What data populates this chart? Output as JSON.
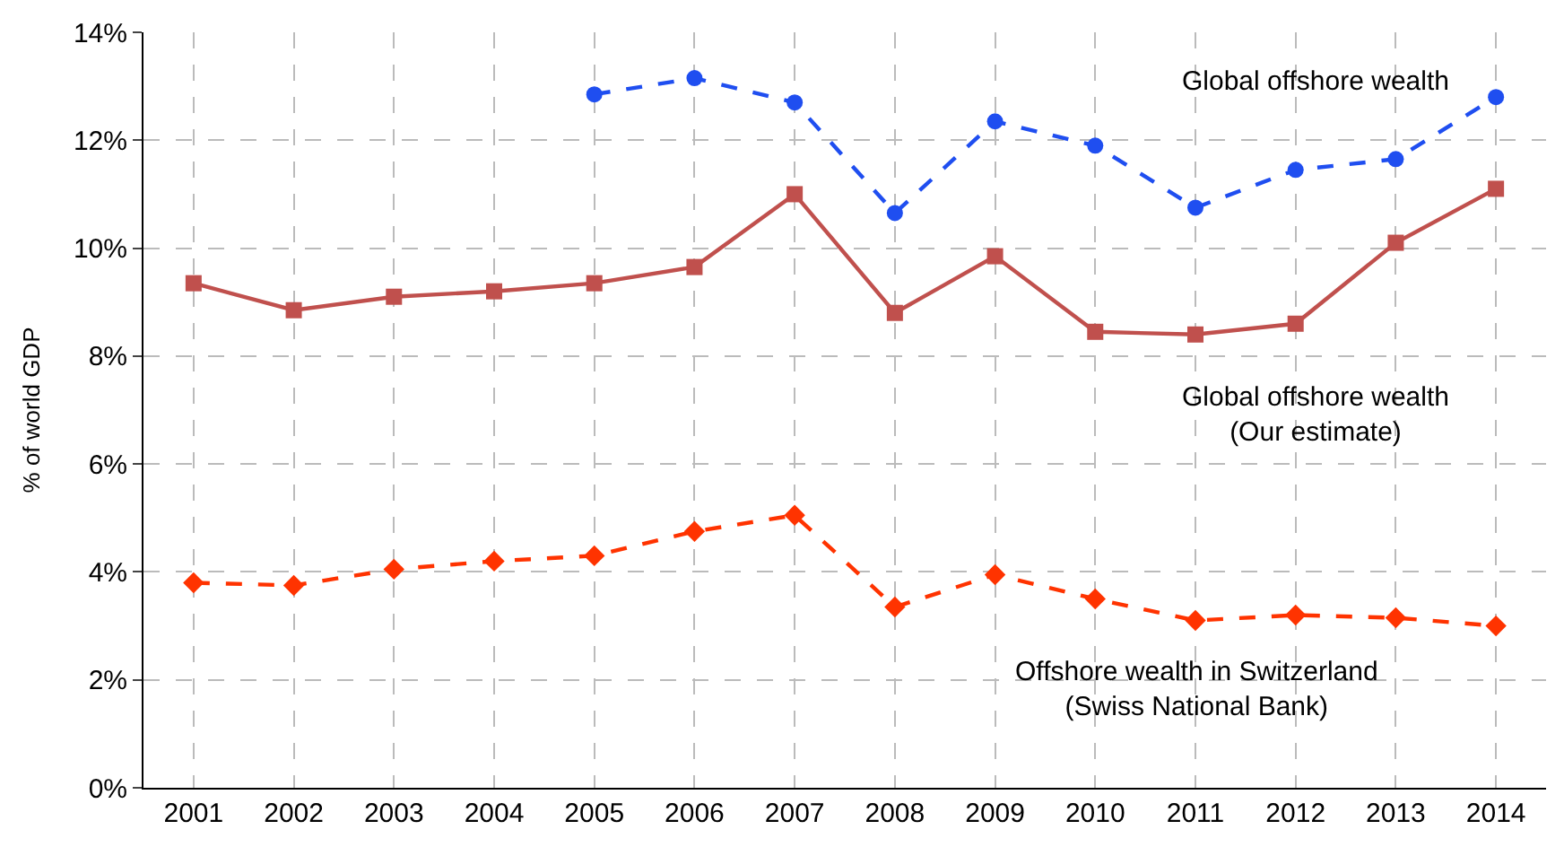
{
  "chart_data": {
    "type": "line",
    "ylabel": "% of world GDP",
    "categories": [
      "2001",
      "2002",
      "2003",
      "2004",
      "2005",
      "2006",
      "2007",
      "2008",
      "2009",
      "2010",
      "2011",
      "2012",
      "2013",
      "2014"
    ],
    "ylim": [
      0,
      14
    ],
    "yticks": [
      {
        "value": 0,
        "label": "0%"
      },
      {
        "value": 2,
        "label": "2%"
      },
      {
        "value": 4,
        "label": "4%"
      },
      {
        "value": 6,
        "label": "6%"
      },
      {
        "value": 8,
        "label": "8%"
      },
      {
        "value": 10,
        "label": "10%"
      },
      {
        "value": 12,
        "label": "12%"
      },
      {
        "value": 14,
        "label": "14%"
      }
    ],
    "grid": true,
    "legend": false,
    "series": [
      {
        "name": "Global offshore wealth",
        "color": "#1f4ef0",
        "marker": "circle",
        "line_style": "dashed",
        "values": [
          null,
          null,
          null,
          null,
          12.85,
          13.15,
          12.7,
          10.65,
          12.35,
          11.9,
          10.75,
          11.45,
          11.65,
          12.8
        ]
      },
      {
        "name": "Global offshore wealth\n(Our estimate)",
        "color": "#c0504d",
        "marker": "square",
        "line_style": "solid",
        "values": [
          9.35,
          8.85,
          9.1,
          9.2,
          9.35,
          9.65,
          11.0,
          8.8,
          9.85,
          8.45,
          8.4,
          8.6,
          10.1,
          11.1
        ]
      },
      {
        "name": "Offshore wealth in Switzerland\n(Swiss National Bank)",
        "color": "#ff3300",
        "marker": "diamond",
        "line_style": "dashed",
        "values": [
          3.8,
          3.75,
          4.05,
          4.2,
          4.3,
          4.75,
          5.05,
          3.35,
          3.95,
          3.5,
          3.1,
          3.2,
          3.15,
          3.0
        ]
      }
    ]
  }
}
